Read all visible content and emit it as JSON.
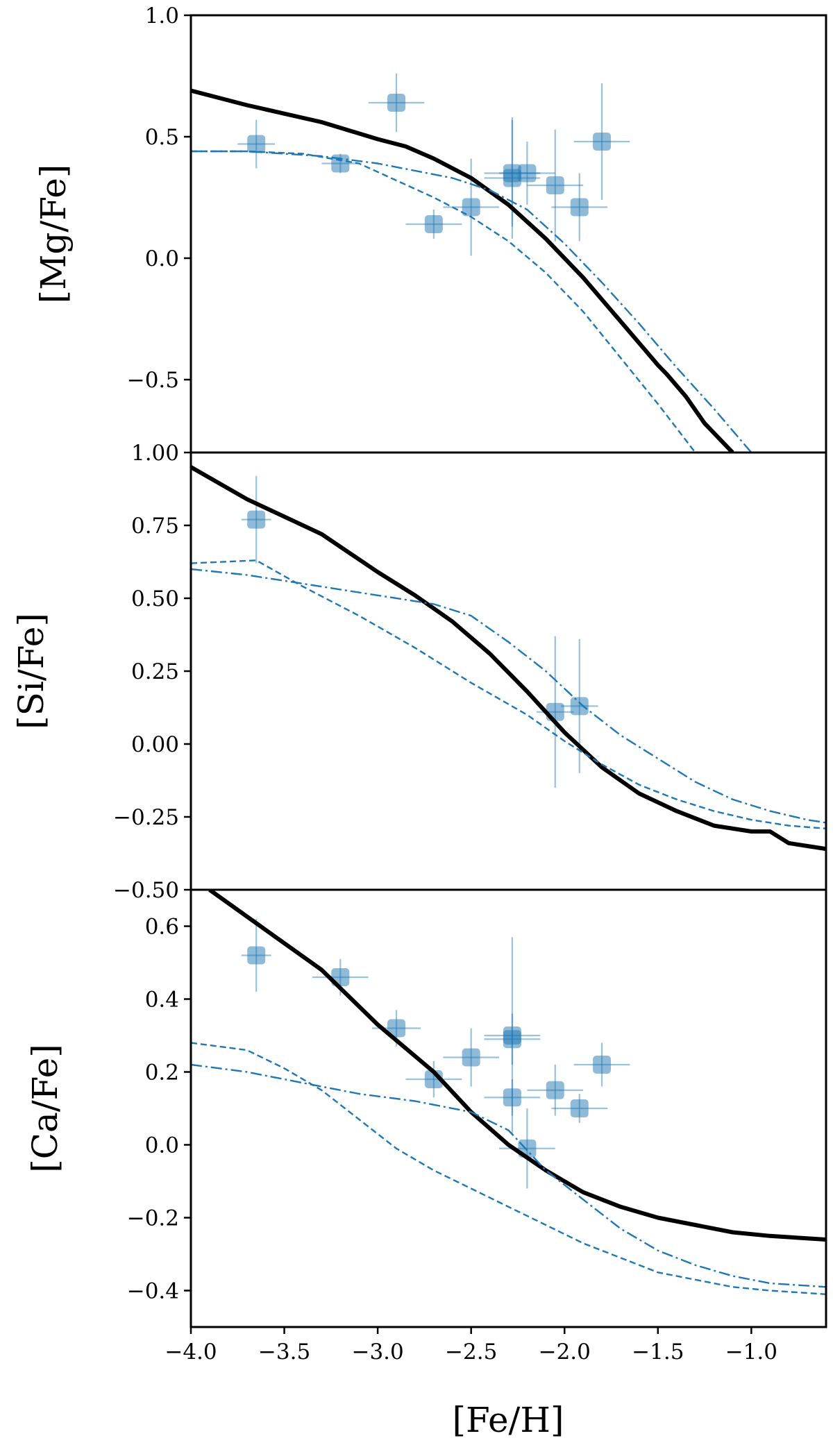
{
  "colors": {
    "model": "#000000",
    "series": "#1f77b4",
    "marker": "#1f77b4"
  },
  "shared_x": {
    "label": "[Fe/H]",
    "lim": [
      -4.0,
      -0.6
    ],
    "ticks": [
      -4.0,
      -3.5,
      -3.0,
      -2.5,
      -2.0,
      -1.5,
      -1.0
    ],
    "tick_labels": [
      "−4.0",
      "−3.5",
      "−3.0",
      "−2.5",
      "−2.0",
      "−1.5",
      "−1.0"
    ]
  },
  "chart_data": [
    {
      "type": "line",
      "ylabel": "[Mg/Fe]",
      "ylim": [
        -0.8,
        1.0
      ],
      "yticks": [
        -0.5,
        0.0,
        0.5,
        1.0
      ],
      "ytick_labels": [
        "−0.5",
        "0.0",
        "0.5",
        "1.0"
      ],
      "series": [
        {
          "style": "solid",
          "x": [
            -4.0,
            -3.7,
            -3.3,
            -3.0,
            -2.85,
            -2.7,
            -2.5,
            -2.3,
            -2.1,
            -1.9,
            -1.7,
            -1.5,
            -1.45,
            -1.35,
            -1.25,
            -1.1
          ],
          "y": [
            0.69,
            0.63,
            0.56,
            0.49,
            0.46,
            0.41,
            0.33,
            0.22,
            0.08,
            -0.08,
            -0.26,
            -0.44,
            -0.48,
            -0.57,
            -0.68,
            -0.8
          ]
        },
        {
          "style": "dashdot",
          "x": [
            -4.0,
            -3.7,
            -3.3,
            -3.0,
            -2.6,
            -2.4,
            -2.2,
            -2.0,
            -1.8,
            -1.6,
            -1.4,
            -1.2,
            -1.0
          ],
          "y": [
            0.44,
            0.44,
            0.42,
            0.39,
            0.33,
            0.28,
            0.2,
            0.06,
            -0.1,
            -0.27,
            -0.45,
            -0.62,
            -0.8
          ]
        },
        {
          "style": "dashed",
          "x": [
            -4.0,
            -3.7,
            -3.4,
            -3.1,
            -2.9,
            -2.7,
            -2.5,
            -2.3,
            -2.1,
            -1.9,
            -1.7,
            -1.5,
            -1.3
          ],
          "y": [
            0.44,
            0.44,
            0.43,
            0.39,
            0.32,
            0.25,
            0.17,
            0.07,
            -0.06,
            -0.22,
            -0.41,
            -0.6,
            -0.8
          ]
        }
      ],
      "points": [
        {
          "x": -3.65,
          "y": 0.47,
          "xerr": 0.1,
          "yerr": 0.1
        },
        {
          "x": -3.2,
          "y": 0.39,
          "xerr": 0.1,
          "yerr": 0.04
        },
        {
          "x": -2.9,
          "y": 0.64,
          "xerr": 0.15,
          "yerr": 0.12
        },
        {
          "x": -2.7,
          "y": 0.14,
          "xerr": 0.15,
          "yerr": 0.06
        },
        {
          "x": -2.5,
          "y": 0.21,
          "xerr": 0.15,
          "yerr": 0.2
        },
        {
          "x": -2.28,
          "y": 0.33,
          "xerr": 0.15,
          "yerr": 0.25
        },
        {
          "x": -2.28,
          "y": 0.35,
          "xerr": 0.15,
          "yerr": 0.22
        },
        {
          "x": -2.2,
          "y": 0.35,
          "xerr": 0.15,
          "yerr": 0.13
        },
        {
          "x": -2.05,
          "y": 0.3,
          "xerr": 0.15,
          "yerr": 0.23
        },
        {
          "x": -1.92,
          "y": 0.21,
          "xerr": 0.15,
          "yerr": 0.14
        },
        {
          "x": -1.8,
          "y": 0.48,
          "xerr": 0.15,
          "yerr": 0.24
        }
      ]
    },
    {
      "type": "line",
      "ylabel": "[Si/Fe]",
      "ylim": [
        -0.5,
        1.0
      ],
      "yticks": [
        -0.5,
        -0.25,
        0.0,
        0.25,
        0.5,
        0.75,
        1.0
      ],
      "ytick_labels": [
        "−0.50",
        "−0.25",
        "0.00",
        "0.25",
        "0.50",
        "0.75",
        "1.00"
      ],
      "series": [
        {
          "style": "solid",
          "x": [
            -4.0,
            -3.7,
            -3.3,
            -3.0,
            -2.8,
            -2.6,
            -2.4,
            -2.2,
            -2.0,
            -1.8,
            -1.6,
            -1.4,
            -1.2,
            -1.0,
            -0.9,
            -0.8,
            -0.7,
            -0.6
          ],
          "y": [
            0.95,
            0.84,
            0.72,
            0.59,
            0.51,
            0.42,
            0.31,
            0.18,
            0.04,
            -0.08,
            -0.17,
            -0.23,
            -0.28,
            -0.3,
            -0.3,
            -0.34,
            -0.35,
            -0.36
          ]
        },
        {
          "style": "dashdot",
          "x": [
            -4.0,
            -3.7,
            -3.4,
            -3.0,
            -2.7,
            -2.5,
            -2.3,
            -2.1,
            -1.9,
            -1.7,
            -1.5,
            -1.3,
            -1.1,
            -0.9,
            -0.7,
            -0.6
          ],
          "y": [
            0.6,
            0.58,
            0.55,
            0.51,
            0.48,
            0.44,
            0.35,
            0.25,
            0.13,
            0.03,
            -0.05,
            -0.13,
            -0.19,
            -0.23,
            -0.26,
            -0.27
          ]
        },
        {
          "style": "dashed",
          "x": [
            -4.0,
            -3.65,
            -3.4,
            -3.1,
            -2.8,
            -2.5,
            -2.2,
            -2.0,
            -1.8,
            -1.6,
            -1.4,
            -1.2,
            -1.0,
            -0.8,
            -0.6
          ],
          "y": [
            0.62,
            0.63,
            0.54,
            0.44,
            0.33,
            0.21,
            0.1,
            0.01,
            -0.07,
            -0.14,
            -0.19,
            -0.23,
            -0.26,
            -0.28,
            -0.29
          ]
        }
      ],
      "points": [
        {
          "x": -3.65,
          "y": 0.77,
          "xerr": 0.08,
          "yerr": 0.15
        },
        {
          "x": -2.05,
          "y": 0.11,
          "xerr": 0.1,
          "yerr": 0.26
        },
        {
          "x": -1.92,
          "y": 0.13,
          "xerr": 0.1,
          "yerr": 0.23
        }
      ]
    },
    {
      "type": "line",
      "ylabel": "[Ca/Fe]",
      "ylim": [
        -0.5,
        0.7
      ],
      "yticks": [
        -0.4,
        -0.2,
        0.0,
        0.2,
        0.4,
        0.6
      ],
      "ytick_labels": [
        "−0.4",
        "−0.2",
        "0.0",
        "0.2",
        "0.4",
        "0.6"
      ],
      "series": [
        {
          "style": "solid",
          "x": [
            -3.9,
            -3.6,
            -3.3,
            -3.0,
            -2.7,
            -2.5,
            -2.3,
            -2.1,
            -1.9,
            -1.7,
            -1.5,
            -1.3,
            -1.1,
            -0.9,
            -0.6
          ],
          "y": [
            0.7,
            0.59,
            0.48,
            0.33,
            0.2,
            0.09,
            0.0,
            -0.07,
            -0.13,
            -0.17,
            -0.2,
            -0.22,
            -0.24,
            -0.25,
            -0.26
          ]
        },
        {
          "style": "dashdot",
          "x": [
            -4.0,
            -3.7,
            -3.4,
            -3.1,
            -2.8,
            -2.5,
            -2.3,
            -2.1,
            -1.9,
            -1.7,
            -1.5,
            -1.3,
            -1.1,
            -0.9,
            -0.6
          ],
          "y": [
            0.22,
            0.2,
            0.17,
            0.14,
            0.12,
            0.09,
            0.04,
            -0.07,
            -0.15,
            -0.23,
            -0.29,
            -0.33,
            -0.36,
            -0.38,
            -0.39
          ]
        },
        {
          "style": "dashed",
          "x": [
            -4.0,
            -3.7,
            -3.5,
            -3.3,
            -3.1,
            -2.9,
            -2.7,
            -2.5,
            -2.3,
            -2.1,
            -1.9,
            -1.7,
            -1.5,
            -1.3,
            -1.1,
            -0.9,
            -0.6
          ],
          "y": [
            0.28,
            0.26,
            0.21,
            0.15,
            0.07,
            -0.01,
            -0.07,
            -0.12,
            -0.17,
            -0.22,
            -0.27,
            -0.31,
            -0.35,
            -0.37,
            -0.39,
            -0.4,
            -0.41
          ]
        }
      ],
      "points": [
        {
          "x": -3.65,
          "y": 0.52,
          "xerr": 0.08,
          "yerr": 0.1
        },
        {
          "x": -3.2,
          "y": 0.46,
          "xerr": 0.15,
          "yerr": 0.05
        },
        {
          "x": -2.9,
          "y": 0.32,
          "xerr": 0.13,
          "yerr": 0.05
        },
        {
          "x": -2.7,
          "y": 0.18,
          "xerr": 0.15,
          "yerr": 0.05
        },
        {
          "x": -2.5,
          "y": 0.24,
          "xerr": 0.15,
          "yerr": 0.08
        },
        {
          "x": -2.28,
          "y": 0.3,
          "xerr": 0.15,
          "yerr": 0.27
        },
        {
          "x": -2.28,
          "y": 0.29,
          "xerr": 0.15,
          "yerr": 0.07
        },
        {
          "x": -2.28,
          "y": 0.13,
          "xerr": 0.15,
          "yerr": 0.05
        },
        {
          "x": -2.2,
          "y": -0.01,
          "xerr": 0.15,
          "yerr": 0.11
        },
        {
          "x": -2.05,
          "y": 0.15,
          "xerr": 0.15,
          "yerr": 0.07
        },
        {
          "x": -1.92,
          "y": 0.1,
          "xerr": 0.15,
          "yerr": 0.04
        },
        {
          "x": -1.8,
          "y": 0.22,
          "xerr": 0.15,
          "yerr": 0.06
        }
      ]
    }
  ]
}
